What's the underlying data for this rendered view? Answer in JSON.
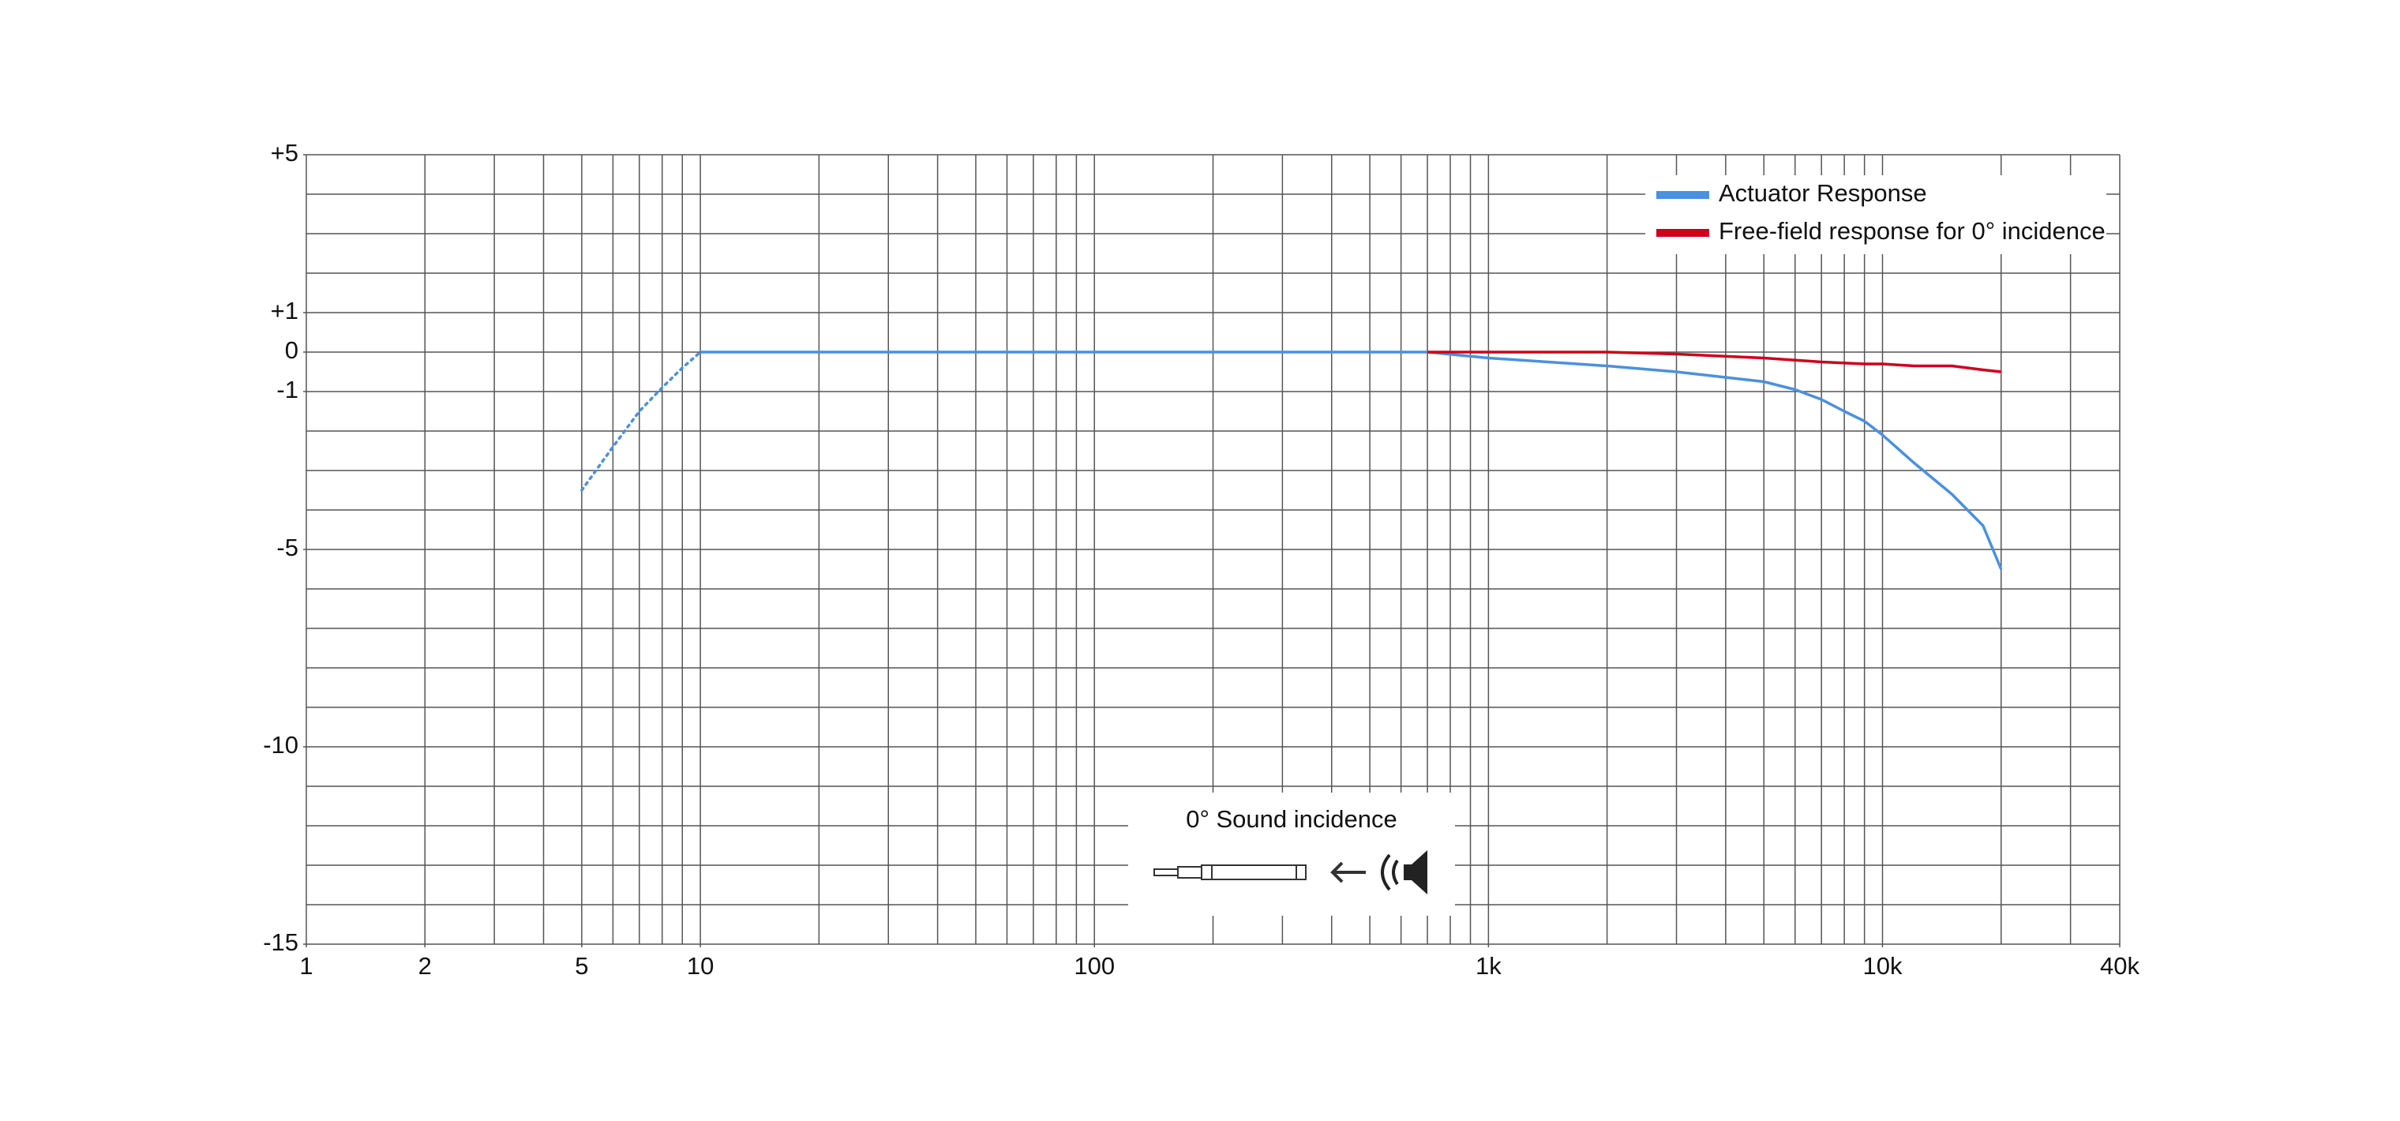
{
  "chart_data": {
    "type": "line",
    "x_scale": "log",
    "grid": true,
    "legend": "top-right",
    "annotation": "0° Sound incidence",
    "xlim": [
      1,
      40000
    ],
    "ylim": [
      -15,
      5
    ],
    "xticks": [
      1,
      2,
      5,
      10,
      100,
      {
        "value": 1000,
        "label": "1k"
      },
      {
        "value": 10000,
        "label": "10k"
      },
      {
        "value": 40000,
        "label": "40k"
      }
    ],
    "yticks": [
      {
        "value": 5,
        "label": "+5"
      },
      {
        "value": 1,
        "label": "+1"
      },
      0,
      -1,
      -5,
      -10,
      -15
    ],
    "xgrid": [
      1,
      2,
      3,
      4,
      5,
      6,
      7,
      8,
      9,
      10,
      20,
      30,
      40,
      50,
      60,
      70,
      80,
      90,
      100,
      200,
      300,
      400,
      500,
      600,
      700,
      800,
      900,
      1000,
      2000,
      3000,
      4000,
      5000,
      6000,
      7000,
      8000,
      9000,
      10000,
      20000,
      30000,
      40000
    ],
    "ygrid": [
      5,
      4,
      3,
      2,
      1,
      0,
      -1,
      -2,
      -3,
      -4,
      -5,
      -6,
      -7,
      -8,
      -9,
      -10,
      -11,
      -12,
      -13,
      -14,
      -15
    ],
    "series": [
      {
        "name": "Actuator Response",
        "color": "#4a90e2",
        "x": [
          10,
          100,
          700,
          1000,
          2000,
          3000,
          5000,
          6000,
          7000,
          8000,
          9000,
          10000,
          12000,
          15000,
          18000,
          20000
        ],
        "values": [
          0,
          0,
          0,
          -0.15,
          -0.35,
          -0.5,
          -0.75,
          -0.95,
          -1.2,
          -1.5,
          -1.75,
          -2.1,
          -2.8,
          -3.6,
          -4.4,
          -5.5
        ]
      },
      {
        "name": "Free-field response for 0° incidence",
        "color": "#d0021b",
        "x": [
          700,
          1000,
          2000,
          3000,
          5000,
          7000,
          9000,
          10000,
          12000,
          15000,
          18000,
          20000
        ],
        "values": [
          0,
          0,
          0,
          -0.05,
          -0.15,
          -0.25,
          -0.3,
          -0.3,
          -0.35,
          -0.35,
          -0.45,
          -0.5
        ]
      },
      {
        "color": "#4a90e2",
        "style": "dotted",
        "x": [
          5,
          6,
          7,
          8,
          9,
          10
        ],
        "values": [
          -3.5,
          -2.4,
          -1.5,
          -0.9,
          -0.4,
          0
        ]
      }
    ]
  }
}
